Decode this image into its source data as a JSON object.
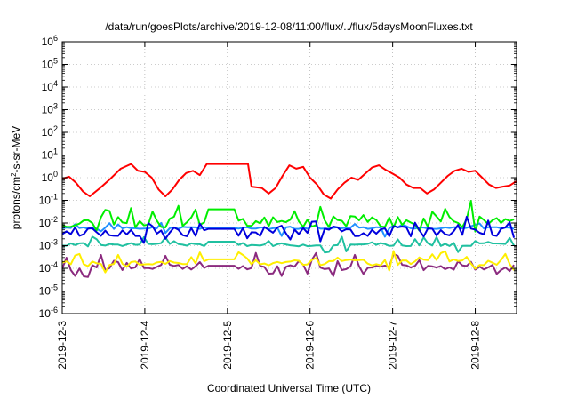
{
  "chart_data": {
    "type": "line",
    "title": "/data/run/goesPlots/archive/2019-12-08/11:00/flux/../flux/5daysMoonFluxes.txt",
    "xlabel": "Coordinated Universal Time (UTC)",
    "ylabel_parts": {
      "pre": "protons/cm",
      "sup": "2",
      "post": "-s-sr-MeV"
    },
    "yscale": "log",
    "ylim": [
      1e-06,
      1000000.0
    ],
    "y_ticks": [
      {
        "value": 1e-06,
        "base": "10",
        "exp": "-6"
      },
      {
        "value": 1e-05,
        "base": "10",
        "exp": "-5"
      },
      {
        "value": 0.0001,
        "base": "10",
        "exp": "-4"
      },
      {
        "value": 0.001,
        "base": "10",
        "exp": "-3"
      },
      {
        "value": 0.01,
        "base": "10",
        "exp": "-2"
      },
      {
        "value": 0.1,
        "base": "10",
        "exp": "-1"
      },
      {
        "value": 1,
        "base": "10",
        "exp": "0"
      },
      {
        "value": 10,
        "base": "10",
        "exp": "1"
      },
      {
        "value": 100,
        "base": "10",
        "exp": "2"
      },
      {
        "value": 1000,
        "base": "10",
        "exp": "3"
      },
      {
        "value": 10000,
        "base": "10",
        "exp": "4"
      },
      {
        "value": 100000,
        "base": "10",
        "exp": "5"
      },
      {
        "value": 1000000,
        "base": "10",
        "exp": "6"
      }
    ],
    "x_start": "2019-12-03",
    "x_end": "2019-12-08T12:00",
    "x_ticks": [
      "2019-12-3",
      "2019-12-4",
      "2019-12-5",
      "2019-12-6",
      "2019-12-7",
      "2019-12-8"
    ],
    "grid": true,
    "legend": "none",
    "series": [
      {
        "color": "#ff0000",
        "points": [
          [
            "2019-12-03T00:00",
            0.9
          ],
          [
            "2019-12-03T02:00",
            1.1
          ],
          [
            "2019-12-03T04:00",
            0.6
          ],
          [
            "2019-12-03T06:00",
            0.25
          ],
          [
            "2019-12-03T08:00",
            0.15
          ],
          [
            "2019-12-03T11:00",
            0.35
          ],
          [
            "2019-12-03T14:00",
            0.9
          ],
          [
            "2019-12-03T17:00",
            2.5
          ],
          [
            "2019-12-03T20:00",
            4.0
          ],
          [
            "2019-12-03T22:00",
            2.0
          ],
          [
            "2019-12-04T00:00",
            1.8
          ],
          [
            "2019-12-04T02:00",
            1.0
          ],
          [
            "2019-12-04T04:00",
            0.3
          ],
          [
            "2019-12-04T06:00",
            0.15
          ],
          [
            "2019-12-04T08:00",
            0.3
          ],
          [
            "2019-12-04T10:00",
            0.8
          ],
          [
            "2019-12-04T12:00",
            1.6
          ],
          [
            "2019-12-04T14:00",
            2.0
          ],
          [
            "2019-12-04T16:00",
            1.3
          ],
          [
            "2019-12-04T18:00",
            4.0
          ],
          [
            "2019-12-05T00:00",
            4.0
          ],
          [
            "2019-12-05T06:00",
            4.0
          ],
          [
            "2019-12-05T07:00",
            0.4
          ],
          [
            "2019-12-05T10:00",
            0.35
          ],
          [
            "2019-12-05T12:00",
            0.2
          ],
          [
            "2019-12-05T14:00",
            0.35
          ],
          [
            "2019-12-05T16:00",
            1.2
          ],
          [
            "2019-12-05T18:00",
            3.5
          ],
          [
            "2019-12-05T20:00",
            2.5
          ],
          [
            "2019-12-05T22:00",
            3.0
          ],
          [
            "2019-12-06T00:00",
            1.0
          ],
          [
            "2019-12-06T02:00",
            0.5
          ],
          [
            "2019-12-06T04:00",
            0.18
          ],
          [
            "2019-12-06T06:00",
            0.12
          ],
          [
            "2019-12-06T08:00",
            0.3
          ],
          [
            "2019-12-06T10:00",
            0.6
          ],
          [
            "2019-12-06T12:00",
            1.0
          ],
          [
            "2019-12-06T14:00",
            0.8
          ],
          [
            "2019-12-06T16:00",
            1.5
          ],
          [
            "2019-12-06T18:00",
            2.8
          ],
          [
            "2019-12-06T20:00",
            3.5
          ],
          [
            "2019-12-06T22:00",
            2.2
          ],
          [
            "2019-12-07T00:00",
            1.5
          ],
          [
            "2019-12-07T02:00",
            1.0
          ],
          [
            "2019-12-07T04:00",
            0.5
          ],
          [
            "2019-12-07T06:00",
            0.35
          ],
          [
            "2019-12-07T08:00",
            0.35
          ],
          [
            "2019-12-07T10:00",
            0.2
          ],
          [
            "2019-12-07T12:00",
            0.3
          ],
          [
            "2019-12-07T14:00",
            0.6
          ],
          [
            "2019-12-07T16:00",
            1.2
          ],
          [
            "2019-12-07T18:00",
            2.0
          ],
          [
            "2019-12-07T20:00",
            2.5
          ],
          [
            "2019-12-07T22:00",
            1.8
          ],
          [
            "2019-12-08T00:00",
            2.0
          ],
          [
            "2019-12-08T02:00",
            1.0
          ],
          [
            "2019-12-08T04:00",
            0.5
          ],
          [
            "2019-12-08T06:00",
            0.35
          ],
          [
            "2019-12-08T08:00",
            0.4
          ],
          [
            "2019-12-08T10:00",
            0.45
          ],
          [
            "2019-12-08T12:00",
            0.7
          ]
        ]
      },
      {
        "color": "#00ee00",
        "base": 0.011,
        "noise": 0.5,
        "spikes": 5,
        "seed": 11,
        "flat": [
          [
            "2019-12-04T18:00",
            "2019-12-05T02:00",
            0.04
          ]
        ]
      },
      {
        "color": "#0000dd",
        "base": 0.0042,
        "noise": 0.45,
        "spikes": 3,
        "seed": 23,
        "flat": [
          [
            "2019-12-04T18:00",
            "2019-12-05T02:00",
            0.0055
          ]
        ]
      },
      {
        "color": "#2090ff",
        "base": 0.006,
        "noise": 0.08,
        "spikes": 1.5,
        "seed": 37,
        "flat": [
          [
            "2019-12-04T18:00",
            "2019-12-05T02:00",
            0.006
          ]
        ]
      },
      {
        "color": "#20c0a0",
        "base": 0.0011,
        "noise": 0.15,
        "spikes": 2,
        "seed": 41,
        "flat": [
          [
            "2019-12-04T18:00",
            "2019-12-05T02:00",
            0.0015
          ]
        ]
      },
      {
        "color": "#ffee00",
        "base": 0.00018,
        "noise": 0.25,
        "spikes": 3,
        "seed": 53,
        "flat": [
          [
            "2019-12-04T18:00",
            "2019-12-05T02:00",
            0.00025
          ]
        ]
      },
      {
        "color": "#8b2a7f",
        "base": 0.00011,
        "noise": 0.25,
        "spikes": 4,
        "seed": 67,
        "flat": [
          [
            "2019-12-04T18:00",
            "2019-12-05T02:00",
            0.00013
          ]
        ]
      }
    ]
  }
}
